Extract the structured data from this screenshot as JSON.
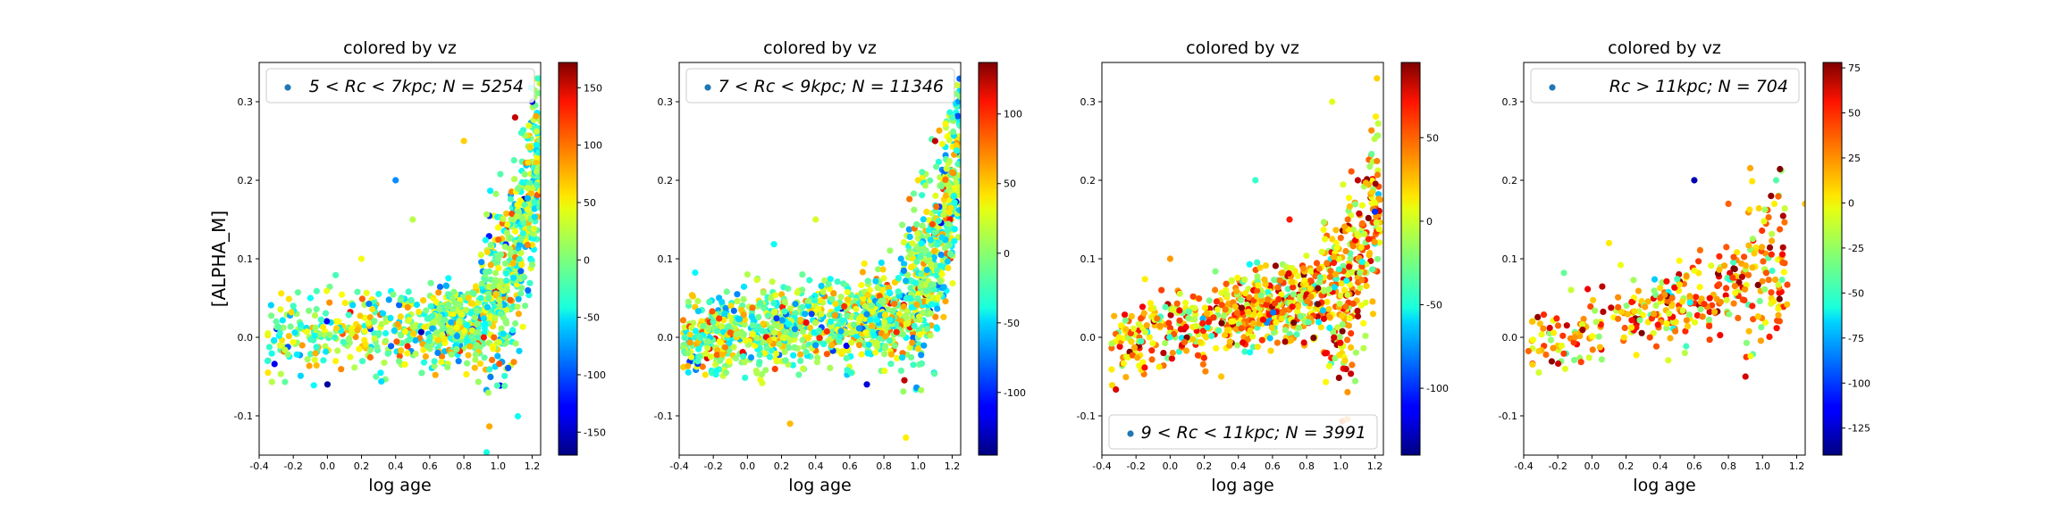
{
  "figure": {
    "ylabel": "[ALPHA_M]",
    "xlabel": "log age",
    "colorbar_label_hidden": true
  },
  "chart_data": [
    {
      "type": "scatter",
      "title": "colored by vz",
      "xlabel": "log age",
      "ylabel": "[ALPHA_M]",
      "xlim": [
        -0.4,
        1.25
      ],
      "ylim": [
        -0.15,
        0.35
      ],
      "xticks": [
        "-0.4",
        "-0.2",
        "0.0",
        "0.2",
        "0.4",
        "0.6",
        "0.8",
        "1.0",
        "1.2"
      ],
      "yticks": [
        "-0.1",
        "0.0",
        "0.1",
        "0.2",
        "0.3"
      ],
      "legend": {
        "text": "5 < Rc < 7kpc;  N = 5254",
        "placement": "top-right"
      },
      "colorbar": {
        "colormap": "jet",
        "vmin": -170,
        "vmax": 172,
        "ticks": [
          "150",
          "100",
          "50",
          "0",
          "-50",
          "-100",
          "-150"
        ]
      },
      "series": [
        {
          "trend": "flat near 0.0 at young ages, rising steeply above log age 0.9 to about 0.3",
          "points": [
            {
              "x": -0.35,
              "y": -0.03,
              "c": -30
            },
            {
              "x": -0.3,
              "y": 0.02,
              "c": -10
            },
            {
              "x": -0.2,
              "y": 0.04,
              "c": -20
            },
            {
              "x": -0.1,
              "y": 0.05,
              "c": -40
            },
            {
              "x": 0.0,
              "y": -0.06,
              "c": -160
            },
            {
              "x": 0.2,
              "y": 0.1,
              "c": 40
            },
            {
              "x": 0.4,
              "y": 0.2,
              "c": -80
            },
            {
              "x": 0.5,
              "y": 0.15,
              "c": 20
            },
            {
              "x": 0.6,
              "y": 0.0,
              "c": -20
            },
            {
              "x": 0.8,
              "y": 0.25,
              "c": 60
            },
            {
              "x": 0.9,
              "y": 0.05,
              "c": -30
            },
            {
              "x": 1.0,
              "y": 0.1,
              "c": 0
            },
            {
              "x": 1.1,
              "y": 0.28,
              "c": 150
            },
            {
              "x": 1.2,
              "y": 0.3,
              "c": -140
            }
          ]
        }
      ]
    },
    {
      "type": "scatter",
      "title": "colored by vz",
      "xlabel": "log age",
      "ylabel": "",
      "xlim": [
        -0.4,
        1.25
      ],
      "ylim": [
        -0.15,
        0.35
      ],
      "xticks": [
        "-0.4",
        "-0.2",
        "0.0",
        "0.2",
        "0.4",
        "0.6",
        "0.8",
        "1.0",
        "1.2"
      ],
      "yticks": [
        "-0.1",
        "0.0",
        "0.1",
        "0.2",
        "0.3"
      ],
      "legend": {
        "text": "7 < Rc < 9kpc;  N = 11346",
        "placement": "top-right"
      },
      "colorbar": {
        "colormap": "jet",
        "vmin": -145,
        "vmax": 137,
        "ticks": [
          "100",
          "50",
          "0",
          "-50",
          "-100"
        ]
      },
      "series": [
        {
          "trend": "flat near 0.0 at young ages, rising steeply above log age 0.9 to about 0.3",
          "points": [
            {
              "x": -0.35,
              "y": -0.02,
              "c": 0
            },
            {
              "x": -0.2,
              "y": 0.02,
              "c": -20
            },
            {
              "x": 0.0,
              "y": 0.08,
              "c": 10
            },
            {
              "x": 0.25,
              "y": -0.11,
              "c": 50
            },
            {
              "x": 0.4,
              "y": 0.15,
              "c": 20
            },
            {
              "x": 0.7,
              "y": -0.06,
              "c": -120
            },
            {
              "x": 0.9,
              "y": 0.1,
              "c": -60
            },
            {
              "x": 1.0,
              "y": 0.2,
              "c": 40
            },
            {
              "x": 1.1,
              "y": 0.25,
              "c": 120
            },
            {
              "x": 1.2,
              "y": 0.28,
              "c": -20
            }
          ]
        }
      ]
    },
    {
      "type": "scatter",
      "title": "colored by vz",
      "xlabel": "log age",
      "ylabel": "",
      "xlim": [
        -0.4,
        1.25
      ],
      "ylim": [
        -0.15,
        0.35
      ],
      "xticks": [
        "-0.4",
        "-0.2",
        "0.0",
        "0.2",
        "0.4",
        "0.6",
        "0.8",
        "1.0",
        "1.2"
      ],
      "yticks": [
        "-0.1",
        "0.0",
        "0.1",
        "0.2",
        "0.3"
      ],
      "legend": {
        "text": "9 < Rc < 11kpc;  N = 3991",
        "placement": "bottom-right"
      },
      "colorbar": {
        "colormap": "jet",
        "vmin": -140,
        "vmax": 95,
        "ticks": [
          "50",
          "0",
          "-50",
          "-100"
        ]
      },
      "series": [
        {
          "trend": "mostly flat near 0.0 to 0.05, rising above log age 1.0 to about 0.25",
          "points": [
            {
              "x": -0.3,
              "y": 0.0,
              "c": 10
            },
            {
              "x": 0.0,
              "y": 0.1,
              "c": 30
            },
            {
              "x": 0.3,
              "y": -0.05,
              "c": 20
            },
            {
              "x": 0.5,
              "y": 0.2,
              "c": -40
            },
            {
              "x": 0.7,
              "y": 0.15,
              "c": 60
            },
            {
              "x": 0.95,
              "y": 0.3,
              "c": 0
            },
            {
              "x": 1.1,
              "y": 0.2,
              "c": 80
            },
            {
              "x": 1.2,
              "y": 0.16,
              "c": -100
            }
          ]
        }
      ]
    },
    {
      "type": "scatter",
      "title": "colored by vz",
      "xlabel": "log age",
      "ylabel": "",
      "xlim": [
        -0.4,
        1.25
      ],
      "ylim": [
        -0.15,
        0.35
      ],
      "xticks": [
        "-0.4",
        "-0.2",
        "0.0",
        "0.2",
        "0.4",
        "0.6",
        "0.8",
        "1.0",
        "1.2"
      ],
      "yticks": [
        "-0.1",
        "0.0",
        "0.1",
        "0.2",
        "0.3"
      ],
      "legend": {
        "text": "Rc > 11kpc;  N = 704",
        "placement": "top-right"
      },
      "colorbar": {
        "colormap": "jet",
        "vmin": -140,
        "vmax": 78,
        "ticks": [
          "75",
          "50",
          "25",
          "0",
          "-25",
          "-50",
          "-75",
          "-100",
          "-125"
        ]
      },
      "series": [
        {
          "trend": "gently rising from about 0.0 at log age 0 to about 0.08 at log age 1.1",
          "points": [
            {
              "x": -0.35,
              "y": 0.02,
              "c": 10
            },
            {
              "x": -0.1,
              "y": 0.0,
              "c": 20
            },
            {
              "x": 0.1,
              "y": 0.12,
              "c": 0
            },
            {
              "x": 0.4,
              "y": 0.05,
              "c": 30
            },
            {
              "x": 0.6,
              "y": 0.2,
              "c": -130
            },
            {
              "x": 0.8,
              "y": 0.17,
              "c": 30
            },
            {
              "x": 0.9,
              "y": -0.05,
              "c": 60
            },
            {
              "x": 1.05,
              "y": 0.18,
              "c": 75
            },
            {
              "x": 1.08,
              "y": 0.2,
              "c": -40
            },
            {
              "x": 1.25,
              "y": 0.17,
              "c": 10
            }
          ]
        }
      ]
    }
  ]
}
